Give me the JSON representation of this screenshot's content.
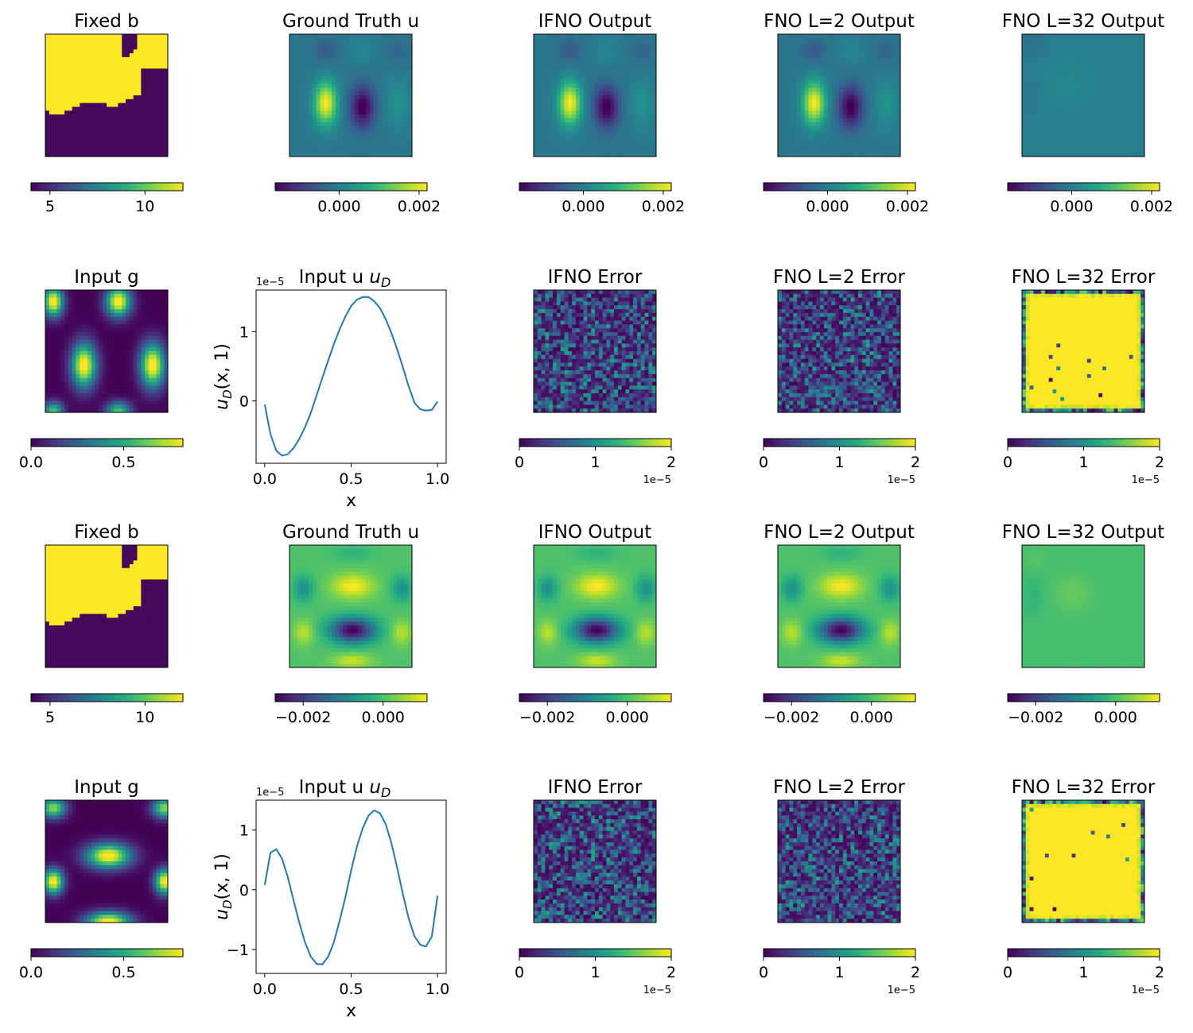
{
  "figure": {
    "panels": [
      {
        "row": 0,
        "col": 0,
        "kind": "image",
        "pattern": "fixed_b",
        "title": "Fixed b",
        "cbar": {
          "ticks": [
            "5",
            "10"
          ],
          "tick_values": [
            5,
            10
          ],
          "range": [
            4,
            12
          ]
        }
      },
      {
        "row": 0,
        "col": 1,
        "kind": "image",
        "pattern": "truth_a",
        "title": "Ground Truth u",
        "cbar": {
          "ticks": [
            "0.000",
            "0.002"
          ],
          "tick_values": [
            0.0,
            0.002
          ],
          "range": [
            -0.0016,
            0.0022
          ]
        }
      },
      {
        "row": 0,
        "col": 2,
        "kind": "image",
        "pattern": "truth_a",
        "title": "IFNO Output",
        "cbar": {
          "ticks": [
            "0.000",
            "0.002"
          ],
          "tick_values": [
            0.0,
            0.002
          ],
          "range": [
            -0.0016,
            0.0022
          ]
        }
      },
      {
        "row": 0,
        "col": 3,
        "kind": "image",
        "pattern": "truth_a",
        "title": "FNO L=2 Output",
        "cbar": {
          "ticks": [
            "0.000",
            "0.002"
          ],
          "tick_values": [
            0.0,
            0.002
          ],
          "range": [
            -0.0016,
            0.0022
          ]
        }
      },
      {
        "row": 0,
        "col": 4,
        "kind": "image",
        "pattern": "flat_a",
        "title": "FNO L=32 Output",
        "cbar": {
          "ticks": [
            "0.000",
            "0.002"
          ],
          "tick_values": [
            0.0,
            0.002
          ],
          "range": [
            -0.0016,
            0.0022
          ]
        }
      },
      {
        "row": 1,
        "col": 0,
        "kind": "image",
        "pattern": "g_a",
        "title": "Input g",
        "cbar": {
          "ticks": [
            "0.0",
            "0.5"
          ],
          "tick_values": [
            0.0,
            0.5
          ],
          "range": [
            0.0,
            0.82
          ]
        }
      },
      {
        "row": 1,
        "col": 1,
        "kind": "line",
        "title": "Input u",
        "title_sub": "D",
        "ylabel": "u",
        "ylabel_sub": "D",
        "ylabel_rest": "(x, 1)",
        "xlabel": "x",
        "offset_text": "1e−5"
      },
      {
        "row": 1,
        "col": 2,
        "kind": "image",
        "pattern": "noise_low",
        "title": "IFNO Error",
        "cbar": {
          "ticks": [
            "0",
            "1",
            "2"
          ],
          "tick_values": [
            0,
            1,
            2
          ],
          "range": [
            0,
            2
          ],
          "offset": "1e−5"
        }
      },
      {
        "row": 1,
        "col": 3,
        "kind": "image",
        "pattern": "noise_low",
        "title": "FNO L=2 Error",
        "cbar": {
          "ticks": [
            "0",
            "1",
            "2"
          ],
          "tick_values": [
            0,
            1,
            2
          ],
          "range": [
            0,
            2
          ],
          "offset": "1e−5"
        }
      },
      {
        "row": 1,
        "col": 4,
        "kind": "image",
        "pattern": "err_high",
        "title": "FNO L=32 Error",
        "cbar": {
          "ticks": [
            "0",
            "1",
            "2"
          ],
          "tick_values": [
            0,
            1,
            2
          ],
          "range": [
            0,
            2
          ],
          "offset": "1e−5"
        }
      },
      {
        "row": 2,
        "col": 0,
        "kind": "image",
        "pattern": "fixed_b",
        "title": "Fixed b",
        "cbar": {
          "ticks": [
            "5",
            "10"
          ],
          "tick_values": [
            5,
            10
          ],
          "range": [
            4,
            12
          ]
        }
      },
      {
        "row": 2,
        "col": 1,
        "kind": "image",
        "pattern": "truth_b",
        "title": "Ground Truth u",
        "cbar": {
          "ticks": [
            "−0.002",
            "0.000"
          ],
          "tick_values": [
            -0.002,
            0.0
          ],
          "range": [
            -0.0027,
            0.0011
          ]
        }
      },
      {
        "row": 2,
        "col": 2,
        "kind": "image",
        "pattern": "truth_b",
        "title": "IFNO Output",
        "cbar": {
          "ticks": [
            "−0.002",
            "0.000"
          ],
          "tick_values": [
            -0.002,
            0.0
          ],
          "range": [
            -0.0027,
            0.0011
          ]
        }
      },
      {
        "row": 2,
        "col": 3,
        "kind": "image",
        "pattern": "truth_b",
        "title": "FNO L=2 Output",
        "cbar": {
          "ticks": [
            "−0.002",
            "0.000"
          ],
          "tick_values": [
            -0.002,
            0.0
          ],
          "range": [
            -0.0027,
            0.0011
          ]
        }
      },
      {
        "row": 2,
        "col": 4,
        "kind": "image",
        "pattern": "flat_b",
        "title": "FNO L=32 Output",
        "cbar": {
          "ticks": [
            "−0.002",
            "0.000"
          ],
          "tick_values": [
            -0.002,
            0.0
          ],
          "range": [
            -0.0027,
            0.0011
          ]
        }
      },
      {
        "row": 3,
        "col": 0,
        "kind": "image",
        "pattern": "g_b",
        "title": "Input g",
        "cbar": {
          "ticks": [
            "0.0",
            "0.5"
          ],
          "tick_values": [
            0.0,
            0.5
          ],
          "range": [
            0.0,
            0.82
          ]
        }
      },
      {
        "row": 3,
        "col": 1,
        "kind": "line",
        "title": "Input u",
        "title_sub": "D",
        "ylabel": "u",
        "ylabel_sub": "D",
        "ylabel_rest": "(x, 1)",
        "xlabel": "x",
        "offset_text": "1e−5"
      },
      {
        "row": 3,
        "col": 2,
        "kind": "image",
        "pattern": "noise_low",
        "title": "IFNO Error",
        "cbar": {
          "ticks": [
            "0",
            "1",
            "2"
          ],
          "tick_values": [
            0,
            1,
            2
          ],
          "range": [
            0,
            2
          ],
          "offset": "1e−5"
        }
      },
      {
        "row": 3,
        "col": 3,
        "kind": "image",
        "pattern": "noise_low",
        "title": "FNO L=2 Error",
        "cbar": {
          "ticks": [
            "0",
            "1",
            "2"
          ],
          "tick_values": [
            0,
            1,
            2
          ],
          "range": [
            0,
            2
          ],
          "offset": "1e−5"
        }
      },
      {
        "row": 3,
        "col": 4,
        "kind": "image",
        "pattern": "err_high",
        "title": "FNO L=32 Error",
        "cbar": {
          "ticks": [
            "0",
            "1",
            "2"
          ],
          "tick_values": [
            0,
            1,
            2
          ],
          "range": [
            0,
            2
          ],
          "offset": "1e−5"
        }
      }
    ]
  },
  "chart_data": [
    {
      "type": "line",
      "title": "Input u_D",
      "xlabel": "x",
      "ylabel": "u_D(x, 1)",
      "y_scale_note": "1e−5",
      "xlim": [
        -0.05,
        1.05
      ],
      "ylim": [
        -0.9,
        1.6
      ],
      "xticks": [
        0.0,
        0.5,
        1.0
      ],
      "xtick_labels": [
        "0.0",
        "0.5",
        "1.0"
      ],
      "yticks": [
        0,
        1
      ],
      "ytick_labels": [
        "0",
        "1"
      ],
      "series": [
        {
          "name": "u_D",
          "color": "#1f77b4",
          "x": [
            0.0,
            0.033,
            0.067,
            0.1,
            0.133,
            0.167,
            0.2,
            0.233,
            0.267,
            0.3,
            0.333,
            0.367,
            0.4,
            0.433,
            0.467,
            0.5,
            0.533,
            0.567,
            0.6,
            0.633,
            0.667,
            0.7,
            0.733,
            0.767,
            0.8,
            0.833,
            0.867,
            0.9,
            0.933,
            0.967,
            1.0
          ],
          "y": [
            -0.05,
            -0.48,
            -0.72,
            -0.79,
            -0.77,
            -0.68,
            -0.55,
            -0.38,
            -0.17,
            0.08,
            0.33,
            0.58,
            0.82,
            1.03,
            1.22,
            1.37,
            1.46,
            1.5,
            1.5,
            1.44,
            1.34,
            1.18,
            0.98,
            0.74,
            0.48,
            0.21,
            -0.03,
            -0.12,
            -0.14,
            -0.13,
            -0.01
          ]
        }
      ]
    },
    {
      "type": "line",
      "title": "Input u_D",
      "xlabel": "x",
      "ylabel": "u_D(x, 1)",
      "y_scale_note": "1e−5",
      "xlim": [
        -0.05,
        1.05
      ],
      "ylim": [
        -1.4,
        1.5
      ],
      "xticks": [
        0.0,
        0.5,
        1.0
      ],
      "xtick_labels": [
        "0.0",
        "0.5",
        "1.0"
      ],
      "yticks": [
        -1,
        0,
        1
      ],
      "ytick_labels": [
        "−1",
        "0",
        "1"
      ],
      "series": [
        {
          "name": "u_D",
          "color": "#1f77b4",
          "x": [
            0.0,
            0.033,
            0.067,
            0.1,
            0.133,
            0.167,
            0.2,
            0.233,
            0.267,
            0.3,
            0.333,
            0.367,
            0.4,
            0.433,
            0.467,
            0.5,
            0.533,
            0.567,
            0.6,
            0.633,
            0.667,
            0.7,
            0.733,
            0.767,
            0.8,
            0.833,
            0.867,
            0.9,
            0.933,
            0.967,
            1.0
          ],
          "y": [
            0.08,
            0.62,
            0.68,
            0.52,
            0.22,
            -0.18,
            -0.55,
            -0.88,
            -1.12,
            -1.24,
            -1.25,
            -1.12,
            -0.88,
            -0.52,
            -0.12,
            0.32,
            0.72,
            1.03,
            1.24,
            1.33,
            1.28,
            1.1,
            0.78,
            0.36,
            -0.08,
            -0.48,
            -0.78,
            -0.92,
            -0.95,
            -0.78,
            -0.1
          ]
        }
      ]
    }
  ]
}
